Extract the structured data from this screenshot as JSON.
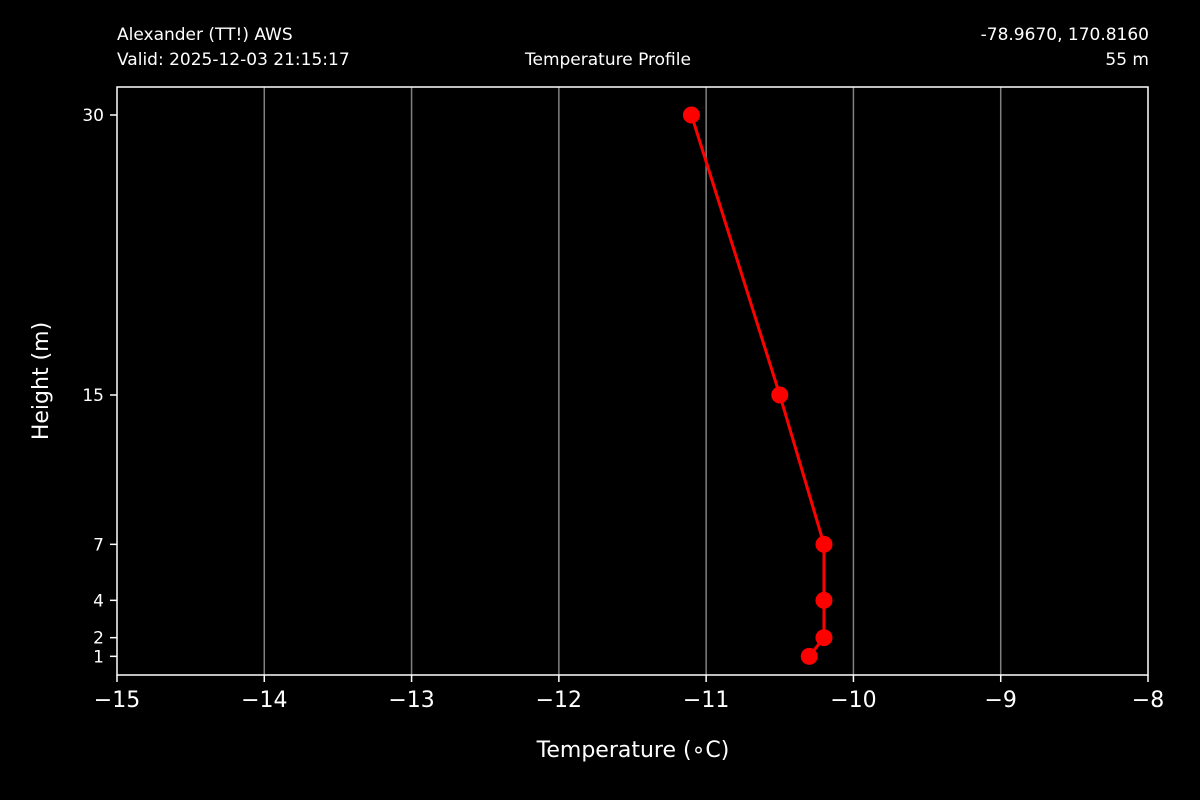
{
  "header": {
    "station": "Alexander (TT!) AWS",
    "valid": "Valid: 2025-12-03 21:15:17",
    "center_title": "Temperature Profile",
    "coords": "-78.9670, 170.8160",
    "elevation": "55 m"
  },
  "colors": {
    "background": "#000000",
    "foreground": "#ffffff",
    "grid": "#808080",
    "series": "#ff0000"
  },
  "chart_data": {
    "type": "line",
    "title": "Temperature Profile",
    "xlabel": "Temperature (∘C)",
    "ylabel": "Height (m)",
    "xlim": [
      -15,
      -8
    ],
    "ylim": [
      0,
      31.5
    ],
    "x_ticks": [
      -15,
      -14,
      -13,
      -12,
      -11,
      -10,
      -9,
      -8
    ],
    "x_tick_labels": [
      "−15",
      "−14",
      "−13",
      "−12",
      "−11",
      "−10",
      "−9",
      "−8"
    ],
    "y_ticks": [
      1,
      2,
      4,
      7,
      15,
      30
    ],
    "y_tick_labels": [
      "1",
      "2",
      "4",
      "7",
      "15",
      "30"
    ],
    "grid": "vertical",
    "series": [
      {
        "points": [
          {
            "temperature": -10.3,
            "height": 1
          },
          {
            "temperature": -10.2,
            "height": 2
          },
          {
            "temperature": -10.2,
            "height": 4
          },
          {
            "temperature": -10.2,
            "height": 7
          },
          {
            "temperature": -10.5,
            "height": 15
          },
          {
            "temperature": -11.1,
            "height": 30
          }
        ]
      }
    ]
  }
}
